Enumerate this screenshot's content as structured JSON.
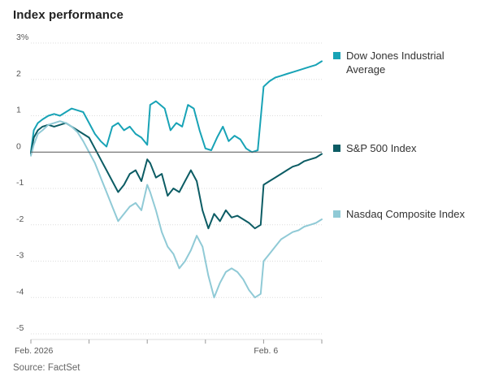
{
  "title": "Index performance",
  "source": "Source: FactSet",
  "colors": {
    "dow": "#18a3b6",
    "sp": "#0c5c64",
    "nasdaq": "#90cad6",
    "grid": "#dcdcdc",
    "zero": "#555555",
    "axis_text": "#555555"
  },
  "chart_data": {
    "type": "line",
    "title": "Index performance",
    "ylim": [
      -5,
      3
    ],
    "y_ticks": [
      3,
      2,
      1,
      0,
      -1,
      -2,
      -3,
      -4,
      -5
    ],
    "y_tick_labels": [
      "3%",
      "2",
      "1",
      "0",
      "-1",
      "-2",
      "-3",
      "-4",
      "-5"
    ],
    "x_tick_labels": [
      {
        "label": "Feb. 2026",
        "day": 0
      },
      {
        "label": "Feb. 6",
        "day": 4
      }
    ],
    "x_range": [
      0,
      5
    ],
    "grid": "horizontal",
    "legend_placement": "right",
    "series": [
      {
        "name": "Dow Jones Industrial Average",
        "color_key": "dow",
        "points": [
          [
            0.0,
            0.0
          ],
          [
            0.05,
            0.6
          ],
          [
            0.12,
            0.8
          ],
          [
            0.2,
            0.9
          ],
          [
            0.3,
            1.0
          ],
          [
            0.4,
            1.05
          ],
          [
            0.5,
            1.0
          ],
          [
            0.6,
            1.1
          ],
          [
            0.7,
            1.2
          ],
          [
            0.8,
            1.15
          ],
          [
            0.9,
            1.1
          ],
          [
            1.0,
            0.8
          ],
          [
            1.1,
            0.5
          ],
          [
            1.2,
            0.3
          ],
          [
            1.3,
            0.15
          ],
          [
            1.4,
            0.7
          ],
          [
            1.5,
            0.8
          ],
          [
            1.6,
            0.6
          ],
          [
            1.7,
            0.7
          ],
          [
            1.8,
            0.5
          ],
          [
            1.9,
            0.4
          ],
          [
            2.0,
            0.2
          ],
          [
            2.05,
            1.3
          ],
          [
            2.15,
            1.4
          ],
          [
            2.3,
            1.2
          ],
          [
            2.4,
            0.6
          ],
          [
            2.5,
            0.8
          ],
          [
            2.6,
            0.7
          ],
          [
            2.7,
            1.3
          ],
          [
            2.8,
            1.2
          ],
          [
            2.9,
            0.6
          ],
          [
            3.0,
            0.1
          ],
          [
            3.1,
            0.05
          ],
          [
            3.2,
            0.4
          ],
          [
            3.3,
            0.7
          ],
          [
            3.4,
            0.3
          ],
          [
            3.5,
            0.45
          ],
          [
            3.6,
            0.35
          ],
          [
            3.7,
            0.1
          ],
          [
            3.8,
            0.0
          ],
          [
            3.9,
            0.05
          ],
          [
            4.0,
            1.8
          ],
          [
            4.1,
            1.95
          ],
          [
            4.2,
            2.05
          ],
          [
            4.3,
            2.1
          ],
          [
            4.4,
            2.15
          ],
          [
            4.5,
            2.2
          ],
          [
            4.6,
            2.25
          ],
          [
            4.7,
            2.3
          ],
          [
            4.8,
            2.35
          ],
          [
            4.9,
            2.4
          ],
          [
            5.0,
            2.5
          ]
        ]
      },
      {
        "name": "S&P 500 Index",
        "color_key": "sp",
        "points": [
          [
            0.0,
            -0.05
          ],
          [
            0.05,
            0.4
          ],
          [
            0.12,
            0.6
          ],
          [
            0.2,
            0.7
          ],
          [
            0.3,
            0.75
          ],
          [
            0.4,
            0.7
          ],
          [
            0.5,
            0.75
          ],
          [
            0.6,
            0.8
          ],
          [
            0.7,
            0.7
          ],
          [
            0.8,
            0.6
          ],
          [
            0.9,
            0.5
          ],
          [
            1.0,
            0.4
          ],
          [
            1.1,
            0.1
          ],
          [
            1.2,
            -0.2
          ],
          [
            1.3,
            -0.5
          ],
          [
            1.4,
            -0.8
          ],
          [
            1.5,
            -1.1
          ],
          [
            1.6,
            -0.9
          ],
          [
            1.7,
            -0.6
          ],
          [
            1.8,
            -0.5
          ],
          [
            1.9,
            -0.8
          ],
          [
            2.0,
            -0.2
          ],
          [
            2.05,
            -0.3
          ],
          [
            2.15,
            -0.7
          ],
          [
            2.25,
            -0.6
          ],
          [
            2.35,
            -1.2
          ],
          [
            2.45,
            -1.0
          ],
          [
            2.55,
            -1.1
          ],
          [
            2.65,
            -0.8
          ],
          [
            2.75,
            -0.5
          ],
          [
            2.85,
            -0.8
          ],
          [
            2.95,
            -1.6
          ],
          [
            3.05,
            -2.1
          ],
          [
            3.15,
            -1.7
          ],
          [
            3.25,
            -1.9
          ],
          [
            3.35,
            -1.6
          ],
          [
            3.45,
            -1.8
          ],
          [
            3.55,
            -1.75
          ],
          [
            3.65,
            -1.85
          ],
          [
            3.75,
            -1.95
          ],
          [
            3.85,
            -2.1
          ],
          [
            3.95,
            -2.0
          ],
          [
            4.0,
            -0.9
          ],
          [
            4.1,
            -0.8
          ],
          [
            4.2,
            -0.7
          ],
          [
            4.3,
            -0.6
          ],
          [
            4.4,
            -0.5
          ],
          [
            4.5,
            -0.4
          ],
          [
            4.6,
            -0.35
          ],
          [
            4.7,
            -0.25
          ],
          [
            4.8,
            -0.2
          ],
          [
            4.9,
            -0.15
          ],
          [
            5.0,
            -0.05
          ]
        ]
      },
      {
        "name": "Nasdaq Composite Index",
        "color_key": "nasdaq",
        "points": [
          [
            0.0,
            -0.1
          ],
          [
            0.05,
            0.2
          ],
          [
            0.12,
            0.5
          ],
          [
            0.2,
            0.6
          ],
          [
            0.3,
            0.75
          ],
          [
            0.4,
            0.8
          ],
          [
            0.5,
            0.85
          ],
          [
            0.6,
            0.8
          ],
          [
            0.7,
            0.7
          ],
          [
            0.8,
            0.55
          ],
          [
            0.9,
            0.3
          ],
          [
            1.0,
            0.0
          ],
          [
            1.1,
            -0.3
          ],
          [
            1.2,
            -0.7
          ],
          [
            1.3,
            -1.1
          ],
          [
            1.4,
            -1.5
          ],
          [
            1.5,
            -1.9
          ],
          [
            1.6,
            -1.7
          ],
          [
            1.7,
            -1.5
          ],
          [
            1.8,
            -1.4
          ],
          [
            1.9,
            -1.6
          ],
          [
            2.0,
            -0.9
          ],
          [
            2.05,
            -1.1
          ],
          [
            2.15,
            -1.6
          ],
          [
            2.25,
            -2.2
          ],
          [
            2.35,
            -2.6
          ],
          [
            2.45,
            -2.8
          ],
          [
            2.55,
            -3.2
          ],
          [
            2.65,
            -3.0
          ],
          [
            2.75,
            -2.7
          ],
          [
            2.85,
            -2.3
          ],
          [
            2.95,
            -2.6
          ],
          [
            3.05,
            -3.4
          ],
          [
            3.15,
            -4.0
          ],
          [
            3.25,
            -3.6
          ],
          [
            3.35,
            -3.3
          ],
          [
            3.45,
            -3.2
          ],
          [
            3.55,
            -3.3
          ],
          [
            3.65,
            -3.5
          ],
          [
            3.75,
            -3.8
          ],
          [
            3.85,
            -4.0
          ],
          [
            3.95,
            -3.9
          ],
          [
            4.0,
            -3.0
          ],
          [
            4.1,
            -2.8
          ],
          [
            4.2,
            -2.6
          ],
          [
            4.3,
            -2.4
          ],
          [
            4.4,
            -2.3
          ],
          [
            4.5,
            -2.2
          ],
          [
            4.6,
            -2.15
          ],
          [
            4.7,
            -2.05
          ],
          [
            4.8,
            -2.0
          ],
          [
            4.9,
            -1.95
          ],
          [
            5.0,
            -1.85
          ]
        ]
      }
    ]
  },
  "legend": [
    {
      "label": "Dow Jones Industrial Average",
      "color_key": "dow",
      "anchor": 2.5
    },
    {
      "label": "S&P 500 Index",
      "color_key": "sp",
      "anchor": -0.05
    },
    {
      "label": "Nasdaq Composite Index",
      "color_key": "nasdaq",
      "anchor": -1.85
    }
  ]
}
